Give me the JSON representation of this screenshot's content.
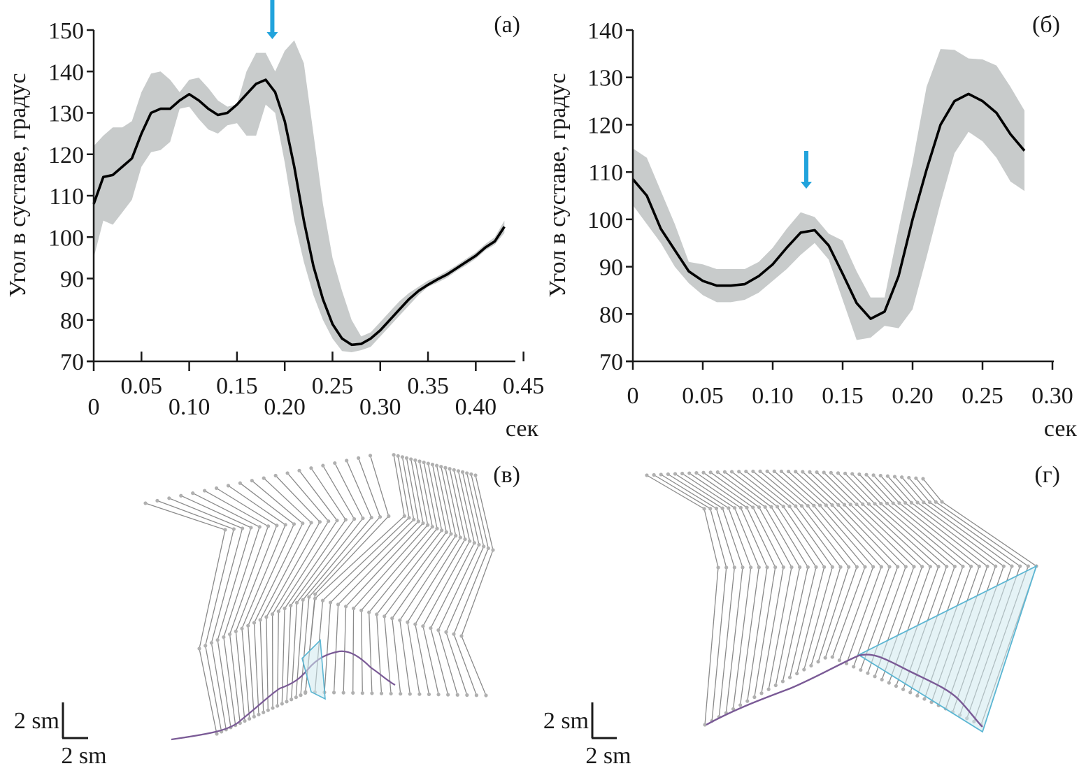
{
  "colors": {
    "mean_line": "#000000",
    "band": "#c8cbcb",
    "arrow": "#21a3dc",
    "stick": "#8a8a8a",
    "joint": "#b0b0b0",
    "trajectory": "#7a5a96",
    "triangle_stroke": "#5bb6d3",
    "triangle_fill": "#cfe9ef"
  },
  "chart_data": [
    {
      "id": "a",
      "type": "line",
      "panel_label": "(а)",
      "ylabel": "Угол в суставе, градус",
      "xlabel": "сек",
      "xlim": [
        0,
        0.44
      ],
      "ylim": [
        70,
        150
      ],
      "xticks_top": [
        "0.05",
        "0.15",
        "0.25",
        "0.35",
        "0.45"
      ],
      "xticks_top_values": [
        0.05,
        0.15,
        0.25,
        0.35,
        0.45
      ],
      "xticks_bottom": [
        "0",
        "0.10",
        "0.20",
        "0.30",
        "0.40"
      ],
      "xticks_bottom_values": [
        0,
        0.1,
        0.2,
        0.3,
        0.4
      ],
      "yticks": [
        70,
        80,
        90,
        100,
        110,
        120,
        130,
        140,
        150
      ],
      "arrow_x": 0.187,
      "x": [
        0,
        0.01,
        0.02,
        0.03,
        0.04,
        0.05,
        0.06,
        0.07,
        0.08,
        0.09,
        0.1,
        0.11,
        0.12,
        0.13,
        0.14,
        0.15,
        0.16,
        0.17,
        0.18,
        0.19,
        0.2,
        0.21,
        0.22,
        0.23,
        0.24,
        0.25,
        0.26,
        0.27,
        0.28,
        0.29,
        0.3,
        0.31,
        0.32,
        0.33,
        0.34,
        0.35,
        0.36,
        0.37,
        0.38,
        0.39,
        0.4,
        0.41,
        0.42,
        0.43
      ],
      "mean": [
        108,
        114.5,
        115,
        117,
        119,
        125,
        130,
        131,
        131,
        133,
        134.5,
        133,
        131,
        129.5,
        130,
        132,
        134.5,
        137,
        138,
        135,
        128,
        117,
        104,
        93,
        85,
        79,
        75.5,
        74,
        74.2,
        75.5,
        77.5,
        80,
        82.5,
        85,
        87,
        88.5,
        89.8,
        91,
        92.5,
        94,
        95.5,
        97.5,
        99,
        102.5
      ],
      "upper": [
        122,
        124.5,
        126.5,
        126.5,
        128,
        135,
        139.5,
        140,
        138,
        135,
        138,
        138.5,
        136,
        133,
        131.5,
        132,
        140,
        144.5,
        144.5,
        140,
        145,
        147.5,
        142,
        125,
        108,
        95,
        87,
        80,
        76,
        77,
        79.5,
        82,
        84.5,
        86.5,
        88,
        89.5,
        90.5,
        91.8,
        93.2,
        94.8,
        96.3,
        98.3,
        100,
        104
      ],
      "lower": [
        95,
        104,
        103,
        106,
        109,
        117,
        120.5,
        121,
        123,
        131,
        131.5,
        128.5,
        126,
        125,
        127,
        127.5,
        124.5,
        124.5,
        132,
        130,
        118,
        104,
        94,
        86,
        80,
        75.5,
        72.5,
        72.2,
        72.7,
        73.5,
        76,
        78.5,
        81,
        83.5,
        86,
        88,
        89,
        90.2,
        91.8,
        93.2,
        94.8,
        96.8,
        98.2,
        101
      ]
    },
    {
      "id": "b",
      "type": "line",
      "panel_label": "(б)",
      "ylabel": "Угол в суставе, градус",
      "xlabel": "сек",
      "xlim": [
        0,
        0.3
      ],
      "ylim": [
        70,
        140
      ],
      "xticks": [
        "0",
        "0.05",
        "0.10",
        "0.15",
        "0.20",
        "0.25",
        "0.30"
      ],
      "xticks_values": [
        0,
        0.05,
        0.1,
        0.15,
        0.2,
        0.25,
        0.3
      ],
      "yticks": [
        70,
        80,
        90,
        100,
        110,
        120,
        130,
        140
      ],
      "arrow_x": 0.124,
      "x": [
        0,
        0.01,
        0.02,
        0.03,
        0.04,
        0.05,
        0.06,
        0.07,
        0.08,
        0.09,
        0.1,
        0.11,
        0.12,
        0.13,
        0.14,
        0.15,
        0.16,
        0.17,
        0.18,
        0.19,
        0.2,
        0.21,
        0.22,
        0.23,
        0.24,
        0.25,
        0.26,
        0.27,
        0.28
      ],
      "mean": [
        108.5,
        105,
        98,
        93.5,
        89,
        87,
        86,
        86,
        86.3,
        88,
        90.5,
        94,
        97.2,
        97.7,
        94.5,
        88.5,
        82.3,
        79,
        80.5,
        88,
        100,
        110.5,
        120,
        125,
        126.5,
        125,
        122.5,
        118,
        114.5
      ],
      "upper": [
        115,
        113,
        106,
        99,
        91,
        90.5,
        89.5,
        89.5,
        89.5,
        91,
        94,
        98,
        101.5,
        100.5,
        97,
        95.5,
        89,
        83.5,
        83.5,
        98,
        112,
        128,
        136,
        135.8,
        134,
        133.8,
        132.5,
        128,
        123
      ],
      "lower": [
        103,
        99,
        95,
        90,
        86.5,
        84,
        82.5,
        82.5,
        83,
        84.5,
        87,
        89.5,
        92.5,
        95,
        91.5,
        83,
        74.5,
        75,
        77.5,
        77,
        81,
        92,
        103.5,
        114,
        118.5,
        116.5,
        113,
        108,
        106
      ]
    }
  ],
  "diagrams": [
    {
      "id": "c",
      "panel_label": "(в)",
      "scale_vertical": "2 sm",
      "scale_horizontal": "2 sm"
    },
    {
      "id": "d",
      "panel_label": "(г)",
      "scale_vertical": "2 sm",
      "scale_horizontal": "2 sm"
    }
  ]
}
